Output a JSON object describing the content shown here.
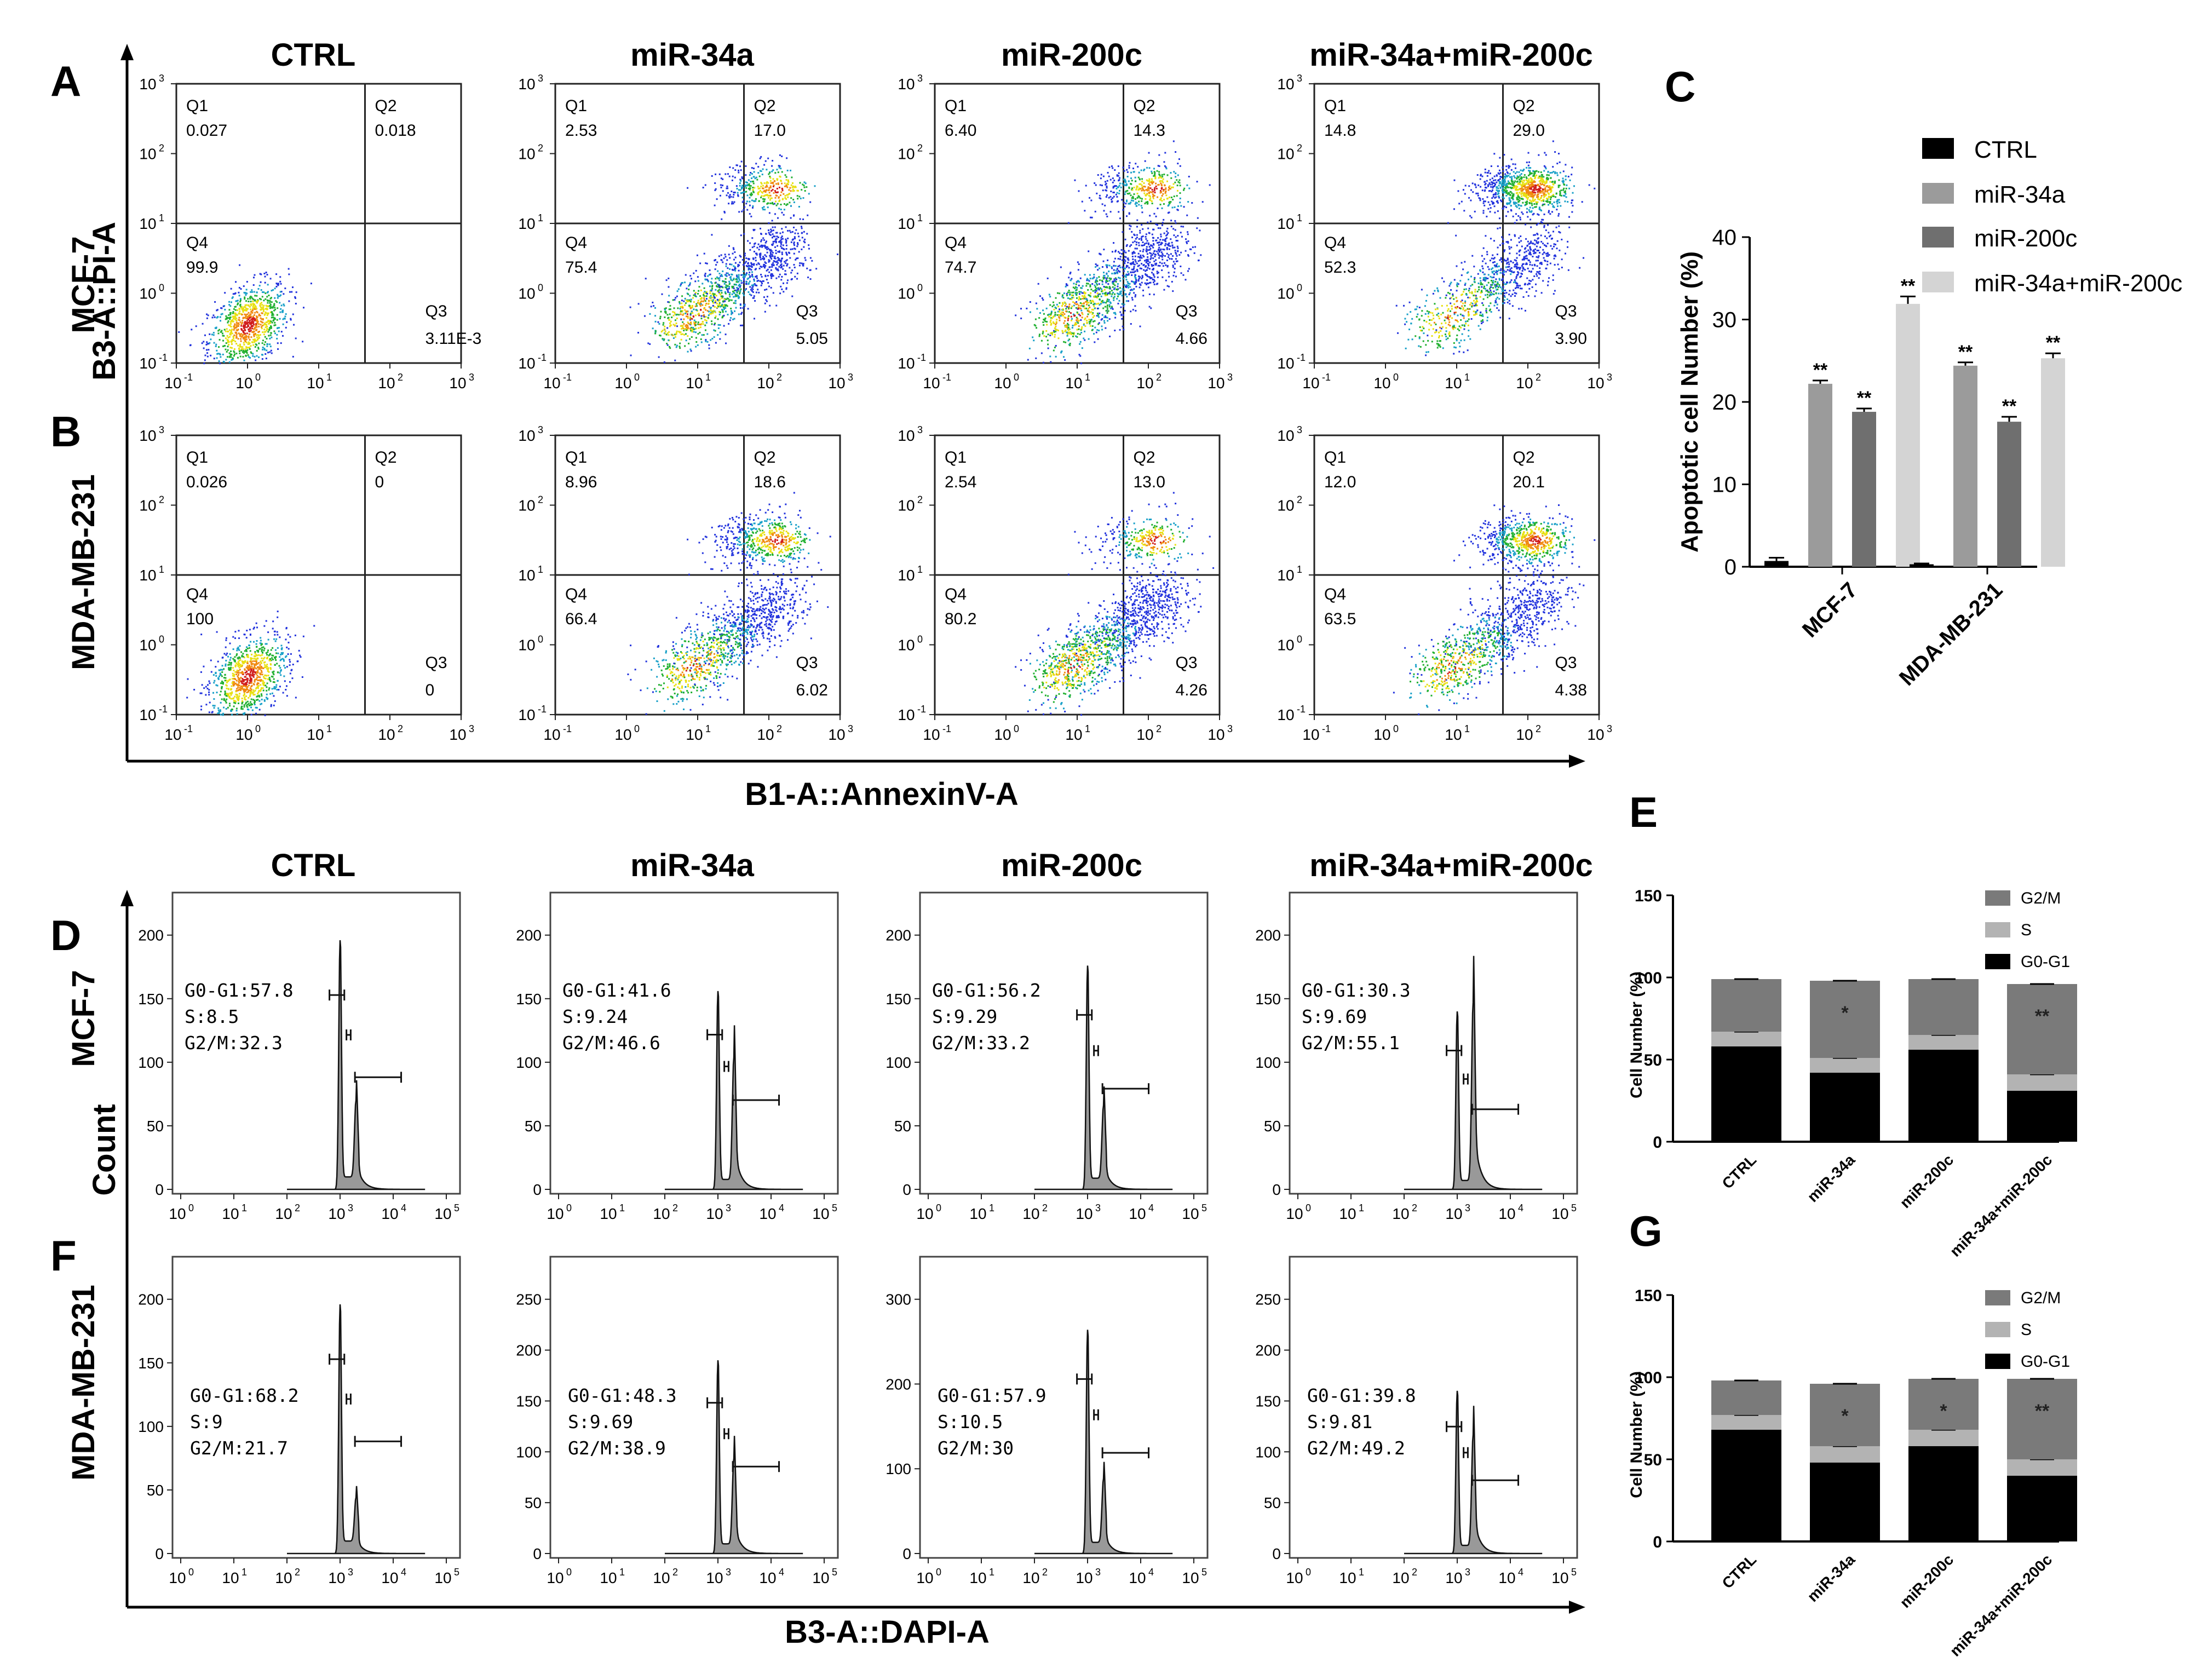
{
  "panel_letters": {
    "A": "A",
    "B": "B",
    "C": "C",
    "D": "D",
    "E": "E",
    "F": "F",
    "G": "G"
  },
  "row_labels": {
    "mcf7": "MCF-7",
    "mda": "MDA-MB-231"
  },
  "col_titles_top": [
    "CTRL",
    "miR-34a",
    "miR-200c",
    "miR-34a+miR-200c"
  ],
  "col_titles_bottom": [
    "CTRL",
    "miR-34a",
    "miR-200c",
    "miR-34a+miR-200c"
  ],
  "axis": {
    "apop_y": "B3-A::PI-A",
    "apop_x": "B1-A::AnnexinV-A",
    "cycle_y": "Count",
    "cycle_x": "B3-A::DAPI-A"
  },
  "flow_log_ticks": [
    "10",
    "10",
    "10",
    "10",
    "10"
  ],
  "flow_log_exps": [
    "-1",
    "0",
    "1",
    "2",
    "3"
  ],
  "quadrant_names": [
    "Q1",
    "Q2",
    "Q3",
    "Q4"
  ],
  "apoptosis": [
    {
      "row": "MCF-7",
      "group": "CTRL",
      "q1": "0.027",
      "q2": "0.018",
      "q3": "3.11E-3",
      "q4": "99.9"
    },
    {
      "row": "MCF-7",
      "group": "miR-34a",
      "q1": "2.53",
      "q2": "17.0",
      "q3": "5.05",
      "q4": "75.4"
    },
    {
      "row": "MCF-7",
      "group": "miR-200c",
      "q1": "6.40",
      "q2": "14.3",
      "q3": "4.66",
      "q4": "74.7"
    },
    {
      "row": "MCF-7",
      "group": "miR-34a+miR-200c",
      "q1": "14.8",
      "q2": "29.0",
      "q3": "3.90",
      "q4": "52.3"
    },
    {
      "row": "MDA-MB-231",
      "group": "CTRL",
      "q1": "0.026",
      "q2": "0",
      "q3": "0",
      "q4": "100"
    },
    {
      "row": "MDA-MB-231",
      "group": "miR-34a",
      "q1": "8.96",
      "q2": "18.6",
      "q3": "6.02",
      "q4": "66.4"
    },
    {
      "row": "MDA-MB-231",
      "group": "miR-200c",
      "q1": "2.54",
      "q2": "13.0",
      "q3": "4.26",
      "q4": "80.2"
    },
    {
      "row": "MDA-MB-231",
      "group": "miR-34a+miR-200c",
      "q1": "12.0",
      "q2": "20.1",
      "q3": "4.38",
      "q4": "63.5"
    }
  ],
  "cycle": [
    {
      "row": "MCF-7",
      "group": "CTRL",
      "g0g1": "G0-G1:57.8",
      "s": "S:8.5",
      "g2m": "G2/M:32.3",
      "ymax": 200,
      "yticks": [
        "0",
        "50",
        "100",
        "150",
        "200"
      ]
    },
    {
      "row": "MCF-7",
      "group": "miR-34a",
      "g0g1": "G0-G1:41.6",
      "s": "S:9.24",
      "g2m": "G2/M:46.6",
      "ymax": 200,
      "yticks": [
        "0",
        "50",
        "100",
        "150",
        "200"
      ]
    },
    {
      "row": "MCF-7",
      "group": "miR-200c",
      "g0g1": "G0-G1:56.2",
      "s": "S:9.29",
      "g2m": "G2/M:33.2",
      "ymax": 200,
      "yticks": [
        "0",
        "50",
        "100",
        "150",
        "200"
      ]
    },
    {
      "row": "MCF-7",
      "group": "miR-34a+miR-200c",
      "g0g1": "G0-G1:30.3",
      "s": "S:9.69",
      "g2m": "G2/M:55.1",
      "ymax": 200,
      "yticks": [
        "0",
        "50",
        "100",
        "150",
        "200"
      ]
    },
    {
      "row": "MDA-MB-231",
      "group": "CTRL",
      "g0g1": "G0-G1:68.2",
      "s": "S:9",
      "g2m": "G2/M:21.7",
      "ymax": 200,
      "yticks": [
        "0",
        "50",
        "100",
        "150",
        "200"
      ]
    },
    {
      "row": "MDA-MB-231",
      "group": "miR-34a",
      "g0g1": "G0-G1:48.3",
      "s": "S:9.69",
      "g2m": "G2/M:38.9",
      "ymax": 250,
      "yticks": [
        "0",
        "50",
        "100",
        "150",
        "200",
        "250"
      ]
    },
    {
      "row": "MDA-MB-231",
      "group": "miR-200c",
      "g0g1": "G0-G1:57.9",
      "s": "S:10.5",
      "g2m": "G2/M:30",
      "ymax": 300,
      "yticks": [
        "0",
        "100",
        "200",
        "300"
      ]
    },
    {
      "row": "MDA-MB-231",
      "group": "miR-34a+miR-200c",
      "g0g1": "G0-G1:39.8",
      "s": "S:9.81",
      "g2m": "G2/M:49.2",
      "ymax": 250,
      "yticks": [
        "0",
        "50",
        "100",
        "150",
        "200",
        "250"
      ]
    }
  ],
  "cycle_xtick_exps": [
    "0",
    "1",
    "2",
    "3",
    "4",
    "5"
  ],
  "colors": {
    "ctrl": "#000000",
    "mir34a": "#9b9b9b",
    "mir200c": "#6f6f6f",
    "combo": "#d4d4d4",
    "g2m": "#7a7a7a",
    "s": "#b3b3b3",
    "g0g1": "#000000",
    "hist": "#999999"
  },
  "chart_data": [
    {
      "id": "C",
      "type": "bar",
      "title": "",
      "xlabel": "",
      "ylabel": "Apoptotic cell Number (%)",
      "ylim": [
        0,
        40
      ],
      "yticks": [
        "0",
        "10",
        "20",
        "30",
        "40"
      ],
      "categories": [
        "MCF-7",
        "MDA-MB-231"
      ],
      "series": [
        {
          "name": "CTRL",
          "values": [
            0.7,
            0.3
          ],
          "errors": [
            0.4,
            0.1
          ],
          "sig": [
            "",
            ""
          ]
        },
        {
          "name": "miR-34a",
          "values": [
            22.2,
            24.4
          ],
          "errors": [
            0.4,
            0.4
          ],
          "sig": [
            "**",
            "**"
          ]
        },
        {
          "name": "miR-200c",
          "values": [
            18.8,
            17.6
          ],
          "errors": [
            0.4,
            0.6
          ],
          "sig": [
            "**",
            "**"
          ]
        },
        {
          "name": "miR-34a+miR-200c",
          "values": [
            31.9,
            25.3
          ],
          "errors": [
            0.9,
            0.6
          ],
          "sig": [
            "**",
            "**"
          ]
        }
      ]
    },
    {
      "id": "E",
      "type": "bar",
      "stacked": true,
      "ylabel": "Cell Number (%)",
      "ylim": [
        0,
        150
      ],
      "yticks": [
        "0",
        "50",
        "100",
        "150"
      ],
      "categories": [
        "CTRL",
        "miR-34a",
        "miR-200c",
        "miR-34a+miR-200c"
      ],
      "series": [
        {
          "name": "G0-G1",
          "values": [
            58,
            42,
            56,
            31
          ]
        },
        {
          "name": "S",
          "values": [
            9,
            9,
            9,
            10
          ]
        },
        {
          "name": "G2/M",
          "values": [
            32,
            47,
            34,
            55
          ]
        }
      ],
      "sig": [
        "",
        "*",
        "",
        "**"
      ]
    },
    {
      "id": "G",
      "type": "bar",
      "stacked": true,
      "ylabel": "Cell Number (%)",
      "ylim": [
        0,
        150
      ],
      "yticks": [
        "0",
        "50",
        "100",
        "150"
      ],
      "categories": [
        "CTRL",
        "miR-34a",
        "miR-200c",
        "miR-34a+miR-200c"
      ],
      "series": [
        {
          "name": "G0-G1",
          "values": [
            68,
            48,
            58,
            40
          ]
        },
        {
          "name": "S",
          "values": [
            9,
            10,
            10,
            10
          ]
        },
        {
          "name": "G2/M",
          "values": [
            21,
            38,
            31,
            49
          ]
        }
      ],
      "sig": [
        "",
        "*",
        "*",
        "**"
      ]
    }
  ]
}
